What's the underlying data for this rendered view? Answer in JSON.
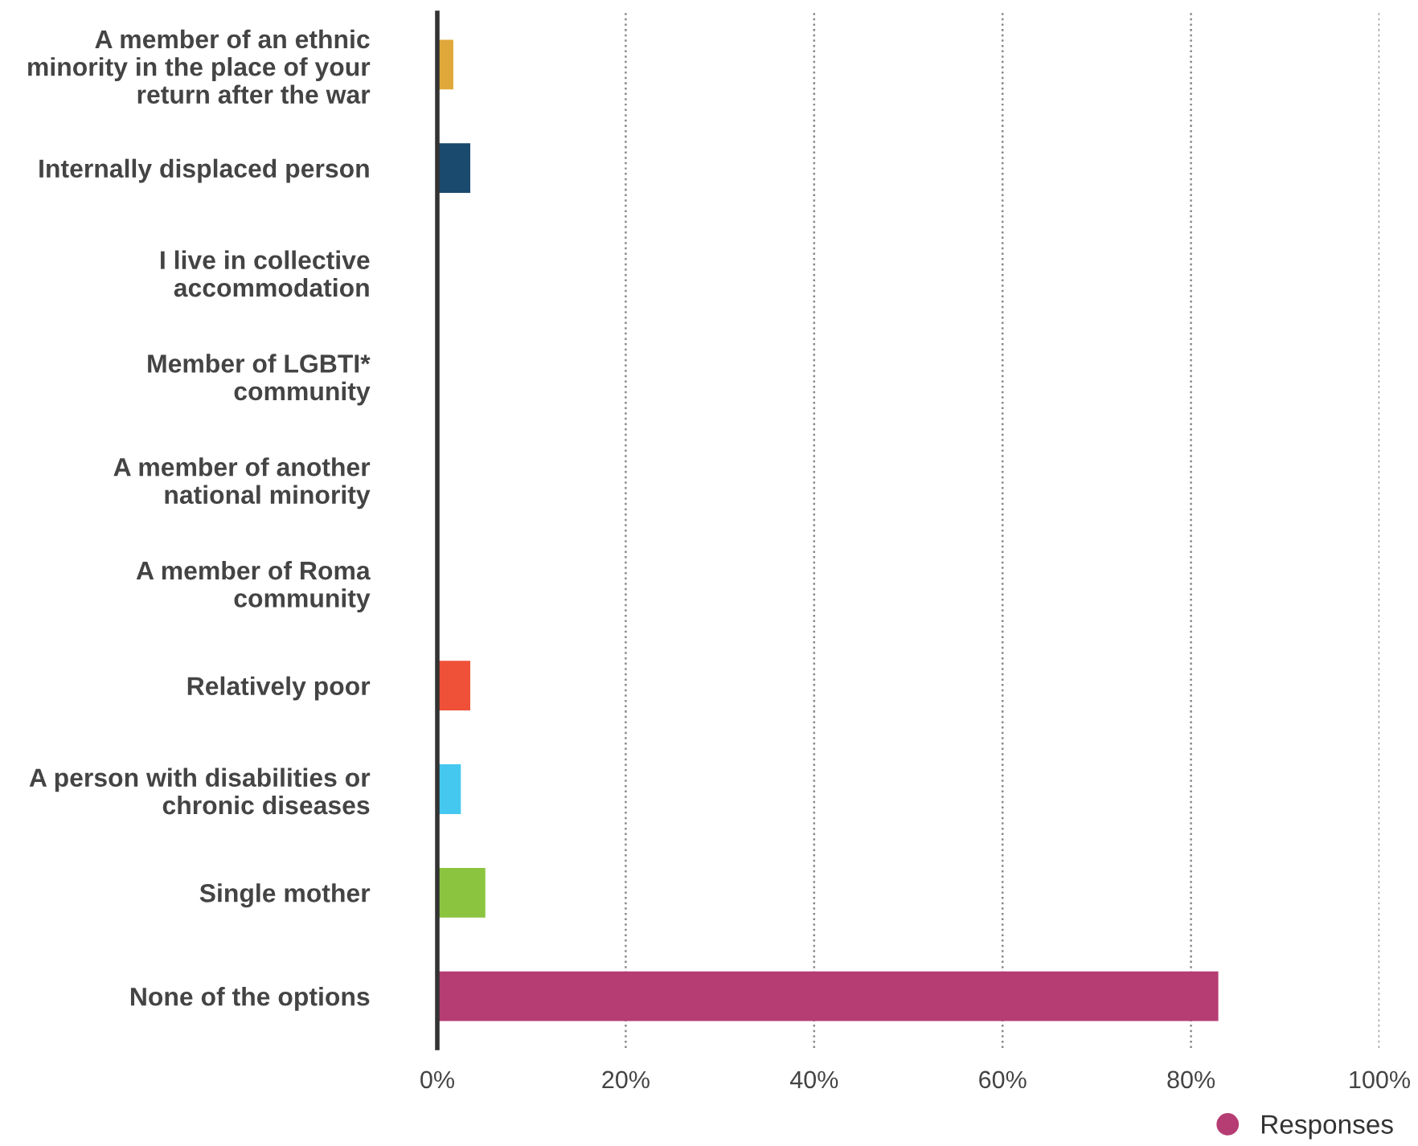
{
  "chart_data": {
    "type": "bar",
    "orientation": "horizontal",
    "categories": [
      "A member of an ethnic\nminority in the place of your\nreturn after the war",
      "Internally displaced person",
      "I live in collective\naccommodation",
      "Member of LGBTI*\ncommunity",
      "A member of another\nnational minority",
      "A member of Roma\ncommunity",
      "Relatively poor",
      "A person with disabilities or\nchronic diseases",
      "Single mother",
      "None of the options"
    ],
    "series": [
      {
        "name": "Responses",
        "color": "#b53d73",
        "values": [
          1.7,
          3.5,
          0,
          0,
          0,
          0,
          3.5,
          2.5,
          5.1,
          82.9
        ],
        "colors": [
          "#e0a83a",
          "#1a4a6e",
          "#1a4a6e",
          "#1a4a6e",
          "#1a4a6e",
          "#1a4a6e",
          "#ef5138",
          "#44c8f0",
          "#8bc540",
          "#b53d73"
        ]
      }
    ],
    "xlim": [
      0,
      100
    ],
    "xticks": [
      {
        "value": 0,
        "label": "0%"
      },
      {
        "value": 20,
        "label": "20%"
      },
      {
        "value": 40,
        "label": "40%"
      },
      {
        "value": 60,
        "label": "60%"
      },
      {
        "value": 80,
        "label": "80%"
      },
      {
        "value": 100,
        "label": "100%"
      }
    ],
    "grid": "x",
    "legend": "bottom right"
  }
}
